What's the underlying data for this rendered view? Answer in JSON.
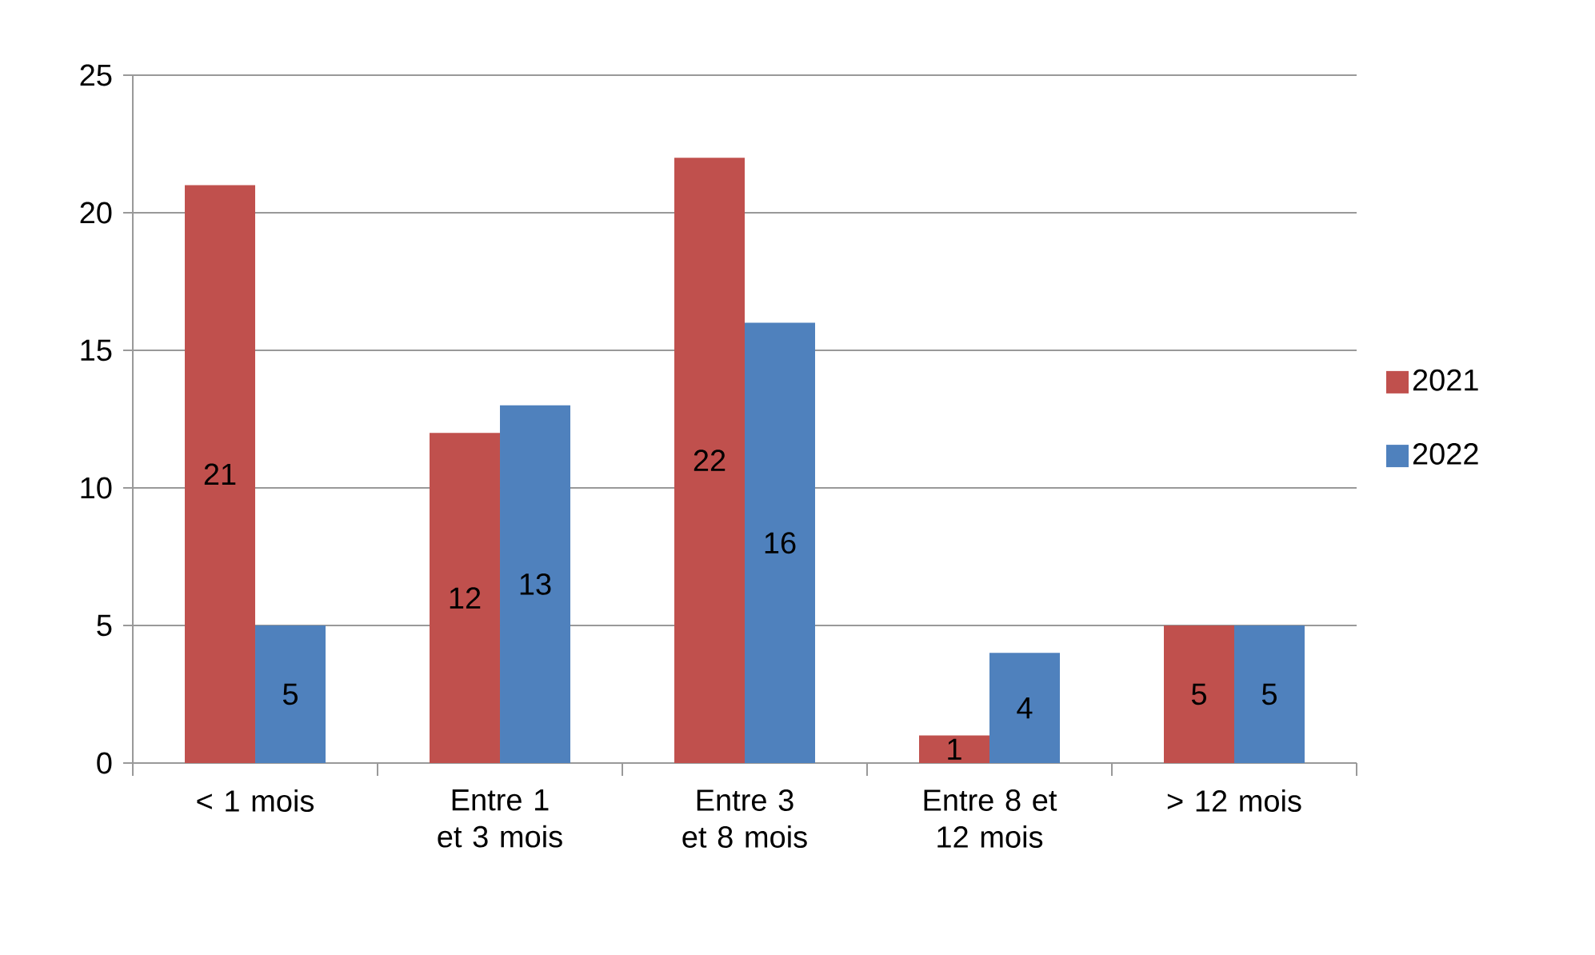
{
  "chart_data": {
    "type": "bar",
    "categories": [
      "< 1 mois",
      "Entre 1 et 3 mois",
      "Entre 3 et 8 mois",
      "Entre 8 et 12 mois",
      "> 12 mois"
    ],
    "series": [
      {
        "name": "2021",
        "color": "#c0504d",
        "values": [
          21,
          12,
          22,
          1,
          5
        ]
      },
      {
        "name": "2022",
        "color": "#4f81bd",
        "values": [
          5,
          13,
          16,
          4,
          5
        ]
      }
    ],
    "ylim": [
      0,
      25
    ],
    "yticks": [
      0,
      5,
      10,
      15,
      20,
      25
    ],
    "grid": "y",
    "legend": "right",
    "data_labels": true
  }
}
